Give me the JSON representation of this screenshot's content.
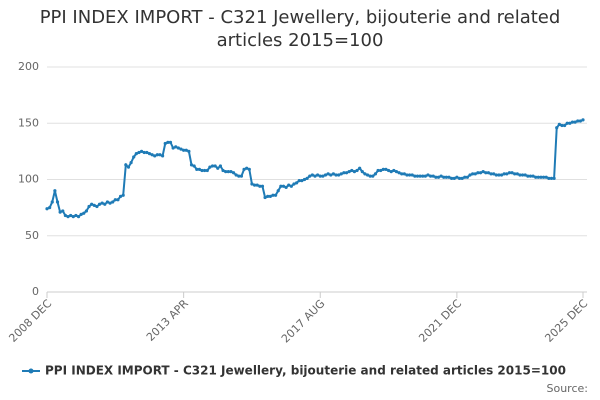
{
  "chart_data": {
    "type": "line",
    "title": "PPI INDEX IMPORT - C321 Jewellery, bijouterie and related articles 2015=100",
    "source": "Source:",
    "categories": [
      "2008 DEC",
      null,
      null,
      null,
      null,
      null,
      null,
      null,
      null,
      null,
      null,
      null,
      null,
      null,
      null,
      null,
      null,
      null,
      null,
      null,
      null,
      null,
      null,
      null,
      null,
      null,
      null,
      null,
      null,
      null,
      null,
      null,
      null,
      null,
      null,
      null,
      null,
      null,
      null,
      null,
      null,
      null,
      null,
      null,
      null,
      null,
      null,
      null,
      null,
      null,
      null,
      null,
      "2013 APR",
      null,
      null,
      null,
      null,
      null,
      null,
      null,
      null,
      null,
      null,
      null,
      null,
      null,
      null,
      null,
      null,
      null,
      null,
      null,
      null,
      null,
      null,
      null,
      null,
      null,
      null,
      null,
      null,
      null,
      null,
      null,
      null,
      null,
      null,
      null,
      null,
      null,
      null,
      null,
      null,
      null,
      null,
      null,
      null,
      null,
      null,
      null,
      null,
      null,
      null,
      null,
      "2017 AUG",
      null,
      null,
      null,
      null,
      null,
      null,
      null,
      null,
      null,
      null,
      null,
      null,
      null,
      null,
      null,
      null,
      null,
      null,
      null,
      null,
      null,
      null,
      null,
      null,
      null,
      null,
      null,
      null,
      null,
      null,
      null,
      null,
      null,
      null,
      null,
      null,
      null,
      null,
      null,
      null,
      null,
      null,
      null,
      null,
      null,
      null,
      null,
      null,
      null,
      null,
      null,
      "2021 DEC",
      null,
      null,
      null,
      null,
      null,
      null,
      null,
      null,
      null,
      null,
      null,
      null,
      null,
      null,
      null,
      null,
      null,
      null,
      null,
      null,
      null,
      null,
      null,
      null,
      null,
      null,
      null,
      null,
      null,
      null,
      null,
      null,
      null,
      null,
      null,
      null,
      null,
      null,
      null,
      null,
      null,
      null,
      null,
      null,
      null,
      null,
      null,
      "2025 DEC"
    ],
    "series": [
      {
        "name": "PPI INDEX IMPORT - C321 Jewellery, bijouterie and related articles 2015=100",
        "color": "#1f7bb6",
        "values": [
          74,
          75,
          80,
          90,
          80,
          71,
          72,
          68,
          67,
          68,
          67,
          68,
          67,
          69,
          70,
          72,
          76,
          78,
          77,
          76,
          78,
          79,
          78,
          80,
          79,
          80,
          82,
          82,
          85,
          86,
          113,
          111,
          115,
          120,
          123,
          124,
          125,
          124,
          124,
          123,
          122,
          121,
          122,
          122,
          121,
          132,
          133,
          133,
          128,
          129,
          128,
          127,
          126,
          126,
          125,
          113,
          112,
          109,
          109,
          108,
          108,
          108,
          111,
          112,
          112,
          110,
          112,
          108,
          107,
          107,
          107,
          106,
          104,
          103,
          103,
          109,
          110,
          109,
          96,
          95,
          95,
          94,
          94,
          84,
          85,
          85,
          86,
          86,
          90,
          94,
          94,
          93,
          95,
          94,
          96,
          97,
          99,
          99,
          100,
          101,
          103,
          104,
          103,
          104,
          103,
          103,
          104,
          105,
          104,
          105,
          104,
          104,
          105,
          106,
          106,
          107,
          108,
          107,
          108,
          110,
          107,
          105,
          104,
          103,
          103,
          105,
          108,
          108,
          109,
          109,
          108,
          107,
          108,
          107,
          106,
          105,
          105,
          104,
          104,
          104,
          103,
          103,
          103,
          103,
          103,
          104,
          103,
          103,
          102,
          102,
          103,
          102,
          102,
          102,
          101,
          101,
          102,
          101,
          101,
          102,
          102,
          104,
          105,
          105,
          106,
          106,
          107,
          106,
          106,
          105,
          105,
          104,
          104,
          104,
          105,
          105,
          106,
          106,
          105,
          105,
          104,
          104,
          104,
          103,
          103,
          103,
          102,
          102,
          102,
          102,
          102,
          101,
          101,
          101,
          146,
          149,
          148,
          148,
          150,
          150,
          151,
          151,
          152,
          152,
          153
        ]
      }
    ],
    "ylim": [
      0,
      200
    ],
    "yticks": [
      0,
      50,
      100,
      150,
      200
    ],
    "grid": true
  }
}
